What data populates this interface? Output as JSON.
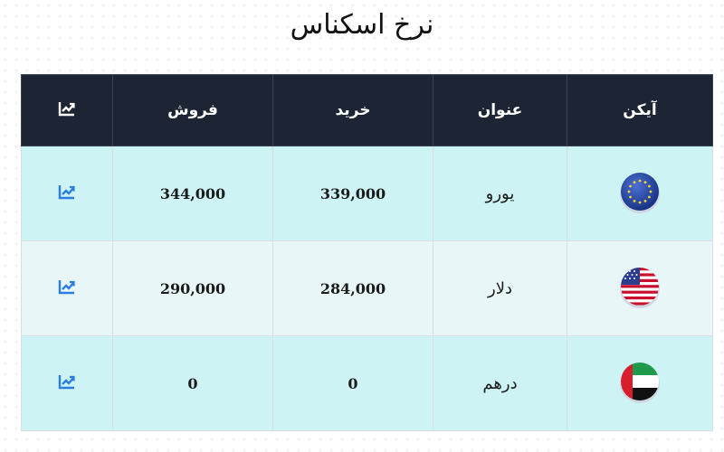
{
  "page": {
    "title": "نرخ اسکناس"
  },
  "table": {
    "headers": {
      "icon": "آیکن",
      "name": "عنوان",
      "buy": "خرید",
      "sell": "فروش",
      "chart": "chart-icon"
    },
    "rows": [
      {
        "flag": "eu-flag-icon",
        "name": "یورو",
        "buy": "339,000",
        "sell": "344,000",
        "chart": "chart-icon"
      },
      {
        "flag": "us-flag-icon",
        "name": "دلار",
        "buy": "284,000",
        "sell": "290,000",
        "chart": "chart-icon"
      },
      {
        "flag": "uae-flag-icon",
        "name": "درهم",
        "buy": "0",
        "sell": "0",
        "chart": "chart-icon"
      }
    ]
  },
  "colors": {
    "header_bg": "#1d2433",
    "row_cyan": "#cdf3f5",
    "row_pale": "#e8f6f8",
    "chart_icon": "#2a7de1"
  }
}
